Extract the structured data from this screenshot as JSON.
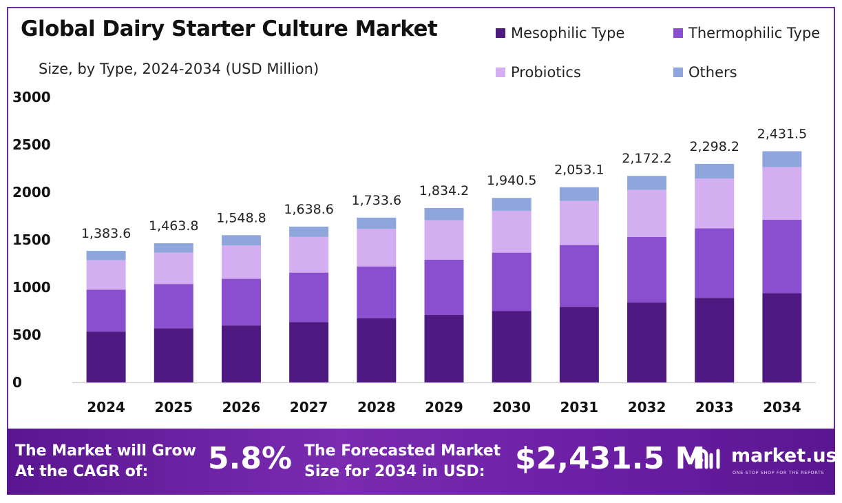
{
  "header": {
    "title": "Global Dairy Starter Culture Market",
    "subtitle": "Size, by Type, 2024-2034 (USD Million)"
  },
  "legend": [
    {
      "name": "Mesophilic Type",
      "color": "#4e1a82"
    },
    {
      "name": "Thermophilic Type",
      "color": "#8a4fce"
    },
    {
      "name": "Probiotics",
      "color": "#d3aef0"
    },
    {
      "name": "Others",
      "color": "#8fa6dc"
    }
  ],
  "chart_data": {
    "type": "bar",
    "stacked": true,
    "categories": [
      "2024",
      "2025",
      "2026",
      "2027",
      "2028",
      "2029",
      "2030",
      "2031",
      "2032",
      "2033",
      "2034"
    ],
    "series": [
      {
        "name": "Mesophilic Type",
        "color": "#4e1a82",
        "values": [
          535,
          570,
          600,
          635,
          675,
          710,
          750,
          795,
          840,
          890,
          940
        ]
      },
      {
        "name": "Thermophilic Type",
        "color": "#8a4fce",
        "values": [
          440,
          465,
          490,
          520,
          545,
          580,
          615,
          650,
          690,
          730,
          770
        ]
      },
      {
        "name": "Probiotics",
        "color": "#d3aef0",
        "values": [
          310,
          330,
          350,
          375,
          395,
          415,
          440,
          465,
          495,
          525,
          555
        ]
      },
      {
        "name": "Others",
        "color": "#8fa6dc",
        "values": [
          98.6,
          98.8,
          108.8,
          108.6,
          118.6,
          129.2,
          135.5,
          143.1,
          147.2,
          153.2,
          166.5
        ]
      }
    ],
    "totals": [
      "1,383.6",
      "1,463.8",
      "1,548.8",
      "1,638.6",
      "1,733.6",
      "1,834.2",
      "1,940.5",
      "2,053.1",
      "2,172.2",
      "2,298.2",
      "2,431.5"
    ],
    "yticks": [
      "0",
      "500",
      "1000",
      "1500",
      "2000",
      "2500",
      "3000"
    ],
    "ylim": [
      0,
      3000
    ],
    "grid": false,
    "legend_position": "top-right"
  },
  "banner": {
    "cagr_label_line1": "The Market will Grow",
    "cagr_label_line2": "At the CAGR of:",
    "cagr_value": "5.8%",
    "forecast_label_line1": "The Forecasted Market",
    "forecast_label_line2": "Size for 2034 in USD:",
    "forecast_value": "$2,431.5 M",
    "logo_name": "market.us",
    "logo_tagline": "ONE STOP SHOP FOR THE REPORTS",
    "logo_icon": "market-us-logo-icon"
  }
}
